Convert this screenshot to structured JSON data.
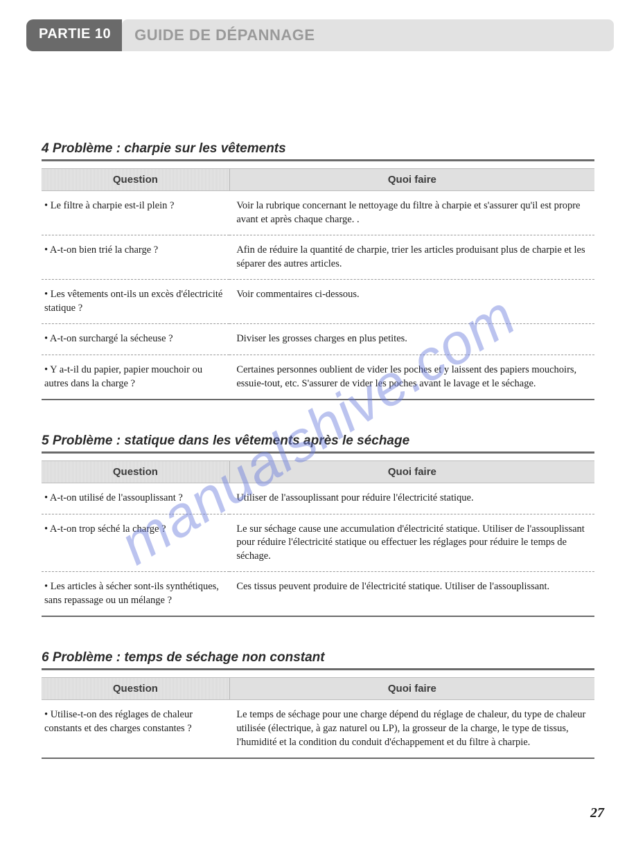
{
  "header": {
    "partie_label": "PARTIE 10",
    "title": "GUIDE DE DÉPANNAGE"
  },
  "watermark": "manualshive.com",
  "page_number": "27",
  "columns": {
    "question": "Question",
    "action": "Quoi faire"
  },
  "section4": {
    "title": "4 Problème : charpie sur les vêtements",
    "rows": [
      {
        "q": "• Le filtre à charpie est-il plein ?",
        "a": "Voir la rubrique concernant le nettoyage du filtre à charpie et s'assurer qu'il est propre avant et après chaque charge. ."
      },
      {
        "q": "• A-t-on bien trié la charge ?",
        "a": "Afin de réduire la quantité de charpie, trier les articles produisant plus de charpie et les séparer des autres articles."
      },
      {
        "q": "• Les vêtements ont-ils un excès d'électricité statique ?",
        "a": "Voir commentaires ci-dessous."
      },
      {
        "q": "• A-t-on surchargé la sécheuse ?",
        "a": "Diviser les grosses charges en plus petites."
      },
      {
        "q": "• Y a-t-il du papier, papier mouchoir ou autres dans la charge ?",
        "a": "Certaines personnes oublient de vider les poches et y laissent des papiers mouchoirs, essuie-tout, etc. S'assurer de vider les poches avant le lavage et le séchage."
      }
    ]
  },
  "section5": {
    "title": "5 Problème : statique dans les vêtements après le séchage",
    "rows": [
      {
        "q": "• A-t-on utilisé de l'assouplissant ?",
        "a": "Utiliser de l'assouplissant pour réduire l'électricité statique."
      },
      {
        "q": "• A-t-on trop séché la charge ?",
        "a": "Le sur séchage cause une accumulation d'électricité statique. Utiliser de l'assouplissant pour réduire l'électricité statique ou effectuer les réglages pour réduire le temps de séchage."
      },
      {
        "q": "• Les articles à sécher sont-ils synthétiques, sans repassage ou un mélange ?",
        "a": "Ces tissus peuvent produire de l'électricité statique. Utiliser de l'assouplissant."
      }
    ]
  },
  "section6": {
    "title": "6 Problème : temps de séchage non constant",
    "rows": [
      {
        "q": "• Utilise-t-on des réglages de chaleur constants et des charges constantes ?",
        "a": "Le temps de séchage pour une charge dépend du réglage de chaleur, du type de chaleur utilisée (électrique, à gaz naturel ou LP), la grosseur de la charge, le type de tissus, l'humidité et la condition du conduit d'échappement et du filtre à charpie."
      }
    ]
  },
  "style": {
    "page_bg": "#ffffff",
    "badge_bg": "#6a6a6a",
    "badge_text": "#ffffff",
    "titlebar_bg": "#e2e2e2",
    "titlebar_text": "#9a9a9a",
    "rule_color": "#6a6a6a",
    "header_row_bg_a": "#d8d8d8",
    "header_row_bg_b": "#e8e8e8",
    "row_divider": "#9a9a9a",
    "watermark_color": "#6a7cdc",
    "body_font_size_pt": 11,
    "title_font_size_pt": 14,
    "problem_font_size_pt": 14
  }
}
